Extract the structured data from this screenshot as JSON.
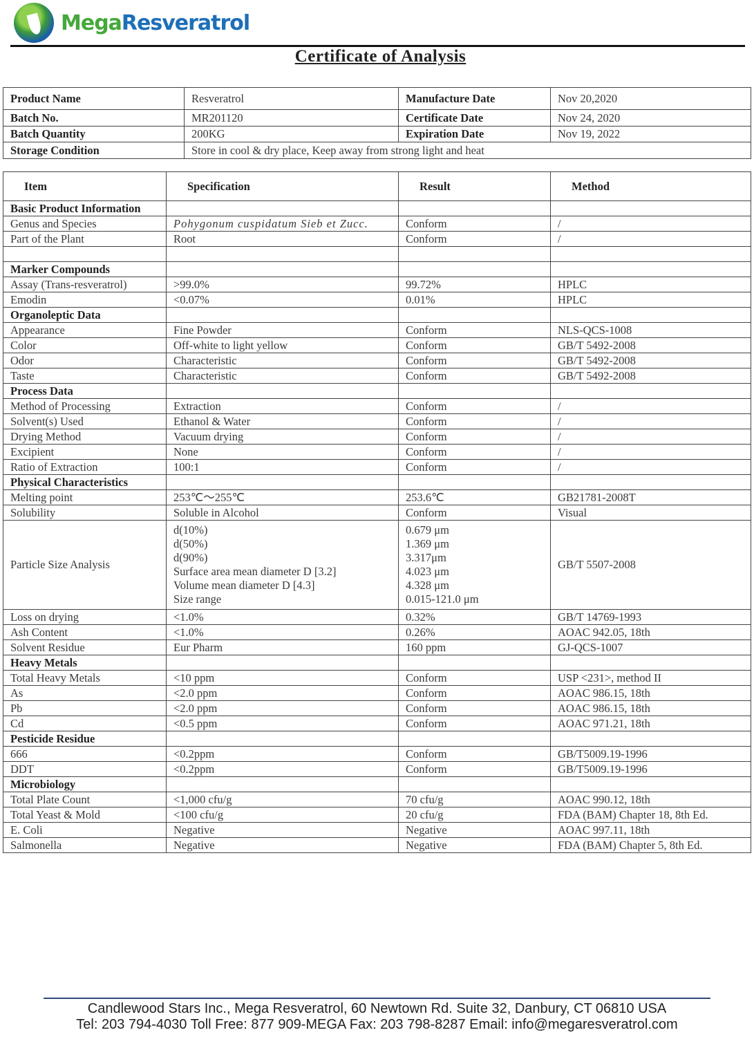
{
  "brand": {
    "name_part1": "Mega",
    "name_part2": "Resveratrol",
    "color_green": "#46a83c",
    "color_blue": "#1d6fb8"
  },
  "title": "Certificate of Analysis",
  "info": [
    [
      "Product Name",
      "Resveratrol",
      "Manufacture Date",
      "Nov 20,2020"
    ],
    [
      "Batch No.",
      "MR201120",
      "Certificate Date",
      "Nov 24, 2020"
    ],
    [
      "Batch Quantity",
      "200KG",
      "Expiration Date",
      "Nov 19, 2022"
    ],
    [
      "Storage Condition",
      "Store in cool & dry place, Keep away from strong light and heat"
    ]
  ],
  "headers": [
    "Item",
    "Specification",
    "Result",
    "Method"
  ],
  "rows": [
    {
      "section": "Basic Product Information"
    },
    {
      "cells": [
        "Genus and Species",
        "Pohygonum cuspidatum Sieb et Zucc.",
        "Conform",
        "/"
      ],
      "italic": true
    },
    {
      "cells": [
        "Part of the Plant",
        "Root",
        "Conform",
        "/"
      ]
    },
    {
      "cells": [
        "",
        "",
        "",
        ""
      ]
    },
    {
      "section": "Marker Compounds"
    },
    {
      "cells": [
        "Assay (Trans-resveratrol)",
        ">99.0%",
        "99.72%",
        "HPLC"
      ]
    },
    {
      "cells": [
        "Emodin",
        "<0.07%",
        "0.01%",
        "HPLC"
      ]
    },
    {
      "section": "Organoleptic Data"
    },
    {
      "cells": [
        "Appearance",
        "Fine Powder",
        "Conform",
        "NLS-QCS-1008"
      ]
    },
    {
      "cells": [
        "Color",
        "Off-white to light yellow",
        "Conform",
        "GB/T 5492-2008"
      ]
    },
    {
      "cells": [
        "Odor",
        "Characteristic",
        "Conform",
        "GB/T 5492-2008"
      ]
    },
    {
      "cells": [
        "Taste",
        "Characteristic",
        "Conform",
        "GB/T 5492-2008"
      ]
    },
    {
      "section": "Process Data"
    },
    {
      "cells": [
        "Method of Processing",
        "Extraction",
        "Conform",
        "/"
      ]
    },
    {
      "cells": [
        "Solvent(s) Used",
        "Ethanol & Water",
        "Conform",
        "/"
      ]
    },
    {
      "cells": [
        "Drying Method",
        "Vacuum drying",
        "Conform",
        "/"
      ]
    },
    {
      "cells": [
        "Excipient",
        "None",
        "Conform",
        "/"
      ]
    },
    {
      "cells": [
        "Ratio of Extraction",
        "100:1",
        "Conform",
        "/"
      ]
    },
    {
      "section": "Physical Characteristics"
    },
    {
      "cells": [
        "Melting point",
        "253℃～255℃",
        "253.6℃",
        "GB21781-2008T"
      ]
    },
    {
      "cells": [
        "Solubility",
        "Soluble in Alcohol",
        "Conform",
        "Visual"
      ]
    },
    {
      "cells": [
        "Particle Size Analysis",
        [
          "d(10%)",
          "d(50%)",
          "d(90%)",
          "Surface area mean diameter D [3.2]",
          "Volume mean diameter D [4.3]",
          "Size range"
        ],
        [
          "0.679 μm",
          "1.369 μm",
          "3.317μm",
          "4.023 μm",
          "4.328 μm",
          "0.015-121.0 μm"
        ],
        "GB/T 5507-2008"
      ]
    },
    {
      "cells": [
        "Loss on drying",
        "<1.0%",
        "0.32%",
        "GB/T 14769-1993"
      ]
    },
    {
      "cells": [
        "Ash Content",
        "<1.0%",
        "0.26%",
        "AOAC 942.05, 18th"
      ]
    },
    {
      "cells": [
        "Solvent Residue",
        "Eur Pharm",
        "160 ppm",
        "GJ-QCS-1007"
      ]
    },
    {
      "section": "Heavy Metals"
    },
    {
      "cells": [
        "Total Heavy Metals",
        "<10 ppm",
        "Conform",
        "USP <231>, method II"
      ]
    },
    {
      "cells": [
        "As",
        "<2.0 ppm",
        "Conform",
        "AOAC 986.15, 18th"
      ]
    },
    {
      "cells": [
        "Pb",
        "<2.0 ppm",
        "Conform",
        "AOAC 986.15, 18th"
      ]
    },
    {
      "cells": [
        "Cd",
        "<0.5 ppm",
        "Conform",
        "AOAC 971.21, 18th"
      ]
    },
    {
      "section": "Pesticide Residue"
    },
    {
      "cells": [
        "666",
        "<0.2ppm",
        "Conform",
        "GB/T5009.19-1996"
      ]
    },
    {
      "cells": [
        "DDT",
        "<0.2ppm",
        "Conform",
        "GB/T5009.19-1996"
      ]
    },
    {
      "section": "Microbiology"
    },
    {
      "cells": [
        "Total Plate Count",
        "<1,000 cfu/g",
        "70 cfu/g",
        "AOAC 990.12, 18th"
      ]
    },
    {
      "cells": [
        "Total Yeast & Mold",
        "<100 cfu/g",
        "20 cfu/g",
        "FDA (BAM) Chapter 18, 8th Ed."
      ]
    },
    {
      "cells": [
        "E. Coli",
        "Negative",
        "Negative",
        "AOAC 997.11, 18th"
      ]
    },
    {
      "cells": [
        "Salmonella",
        "Negative",
        "Negative",
        "FDA (BAM) Chapter 5, 8th Ed."
      ]
    }
  ],
  "footer": {
    "line1": "Candlewood Stars Inc.,  Mega  Resveratrol,  60  Newtown  Rd. Suite 32,  Danbury,  CT  06810  USA",
    "line2": "Tel: 203 794-4030  Toll Free: 877 909-MEGA  Fax: 203 798-8287  Email: info@megaresveratrol.com"
  }
}
